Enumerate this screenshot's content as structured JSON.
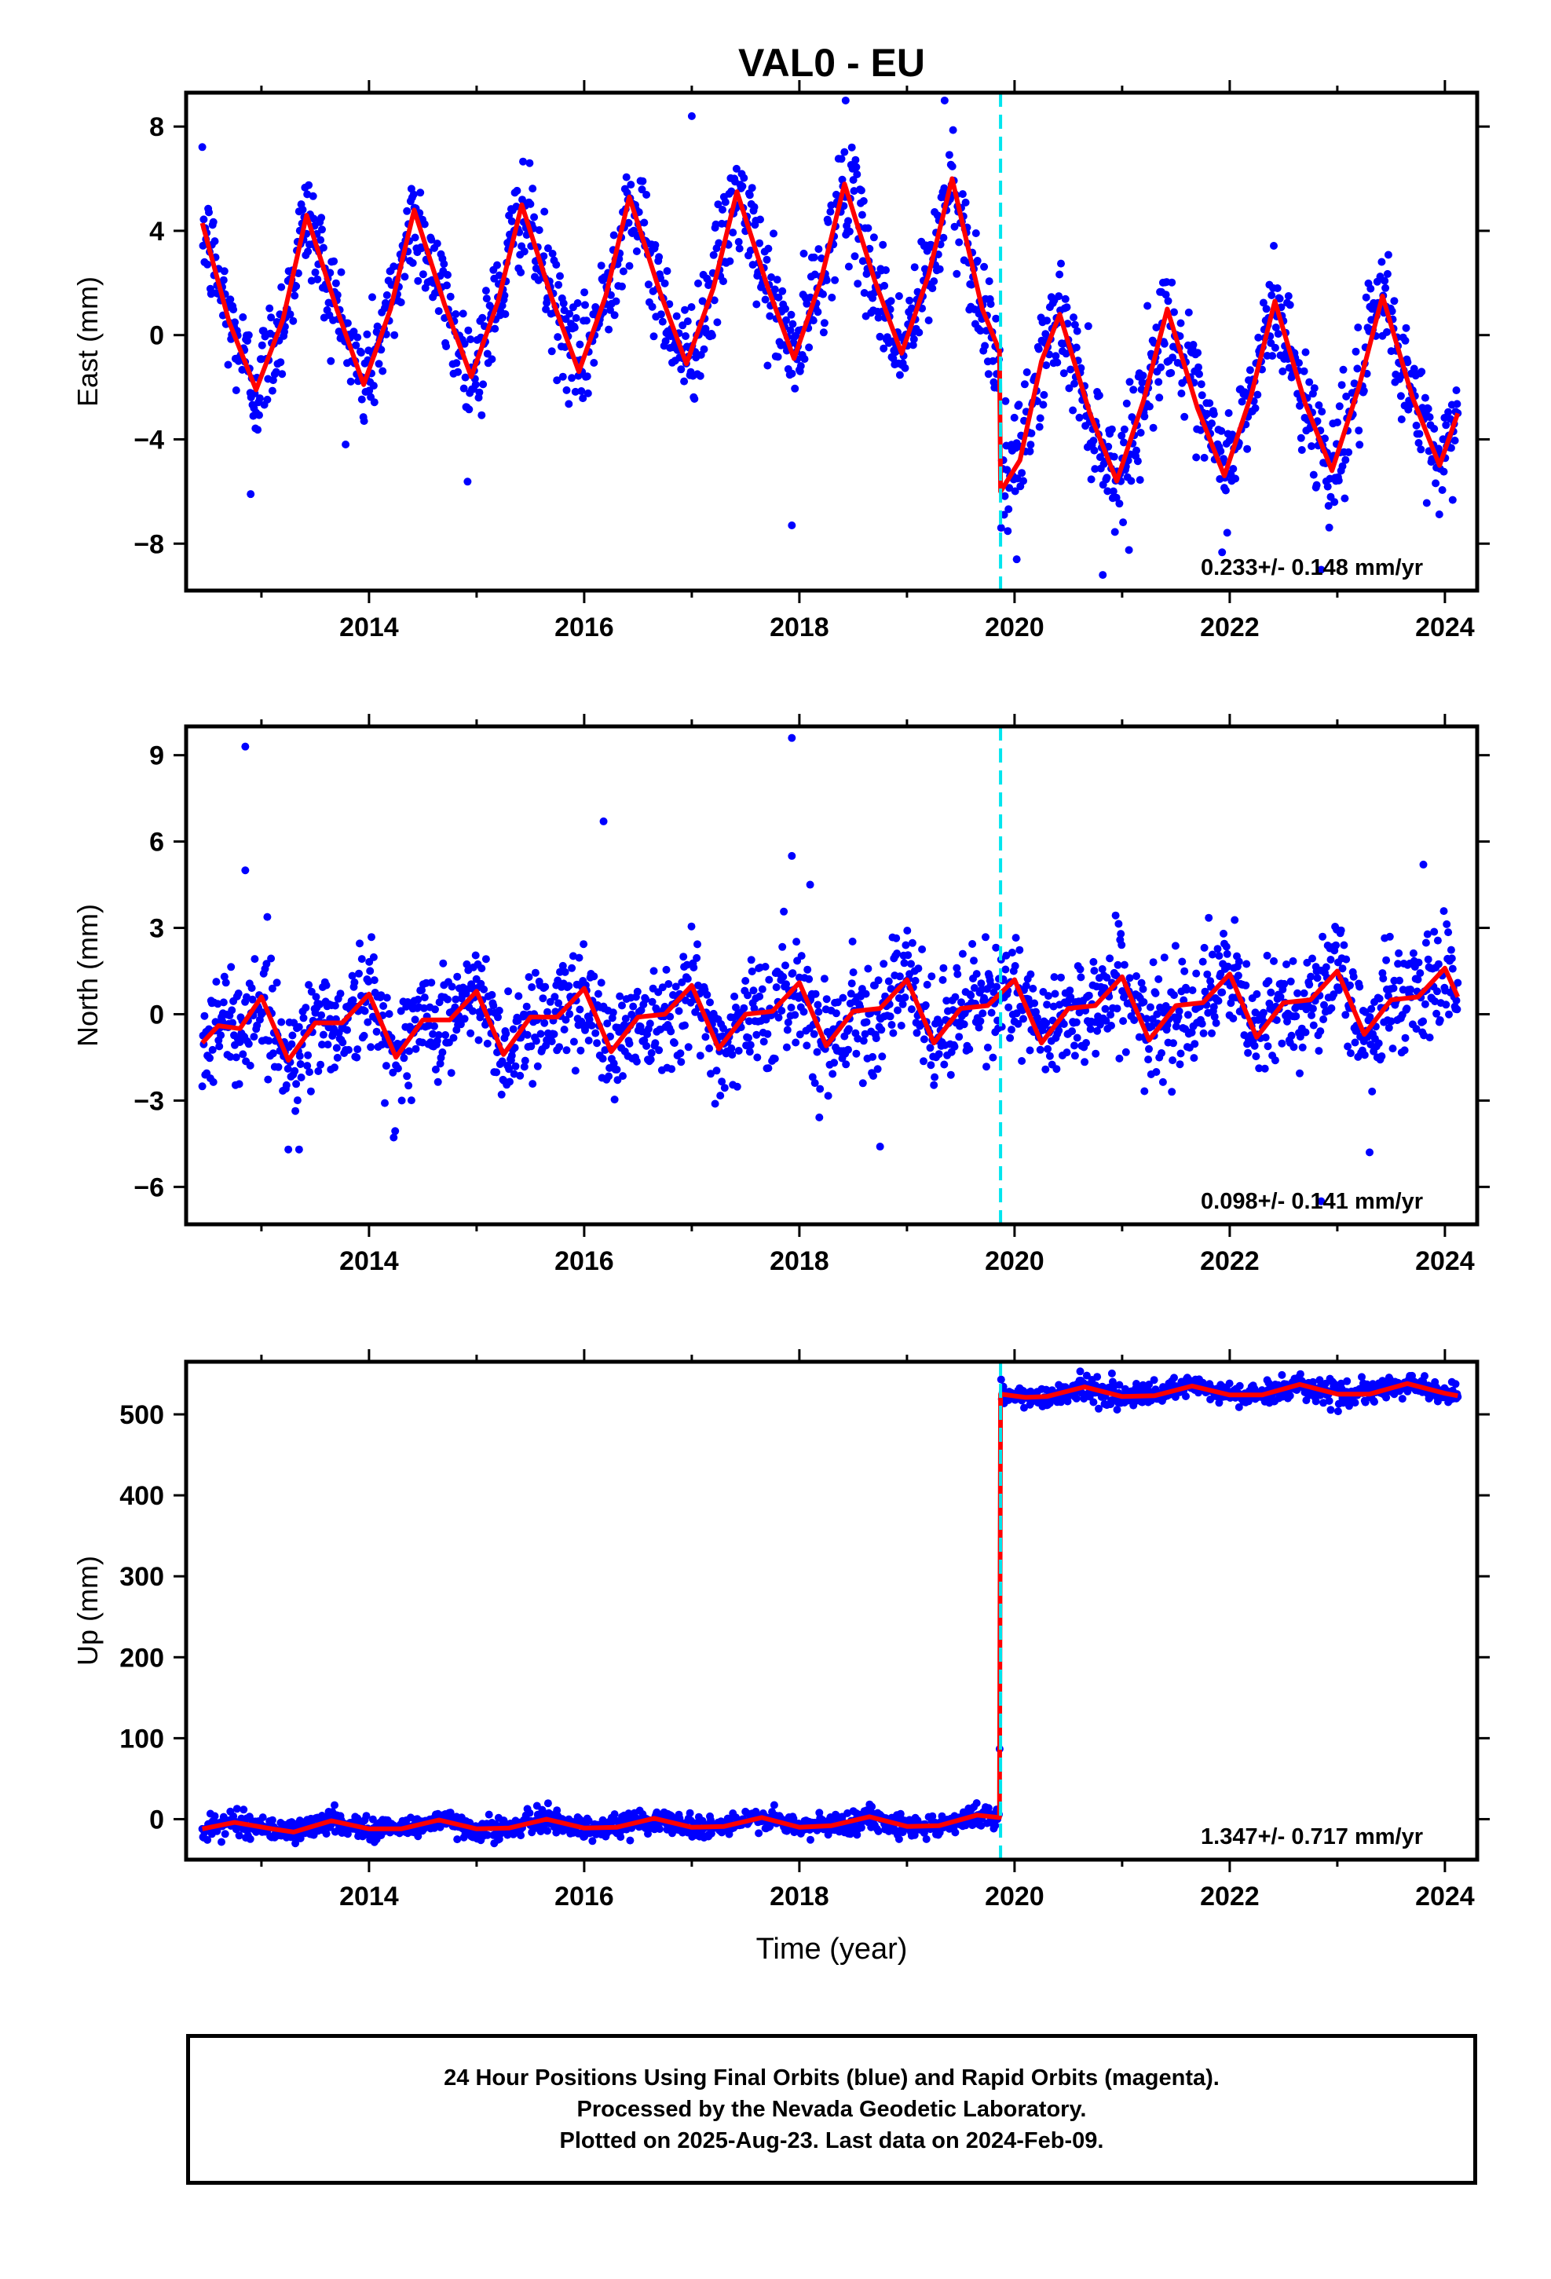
{
  "title": "VAL0 - EU",
  "colors": {
    "final_orbits": "#0000ff",
    "fit": "#ff0000",
    "break_line": "#00e5ee",
    "frame": "#000000"
  },
  "chart_data": [
    {
      "type": "scatter",
      "ylabel": "East (mm)",
      "xlim": [
        2012.3,
        2024.3
      ],
      "ylim": [
        -9.8,
        9.3
      ],
      "xticks": [
        "2014",
        "2016",
        "2018",
        "2020",
        "2022",
        "2024"
      ],
      "xtick_values": [
        2014,
        2016,
        2018,
        2020,
        2022,
        2024
      ],
      "yticks": [
        "8",
        "4",
        "0",
        "−4",
        "−8"
      ],
      "ytick_values": [
        8,
        4,
        0,
        -4,
        -8
      ],
      "velocity": "0.233+/- 0.148 mm/yr",
      "break_epoch": 2019.87,
      "fit": [
        {
          "x": 2012.45,
          "y": 4.3
        },
        {
          "x": 2012.7,
          "y": 0.5
        },
        {
          "x": 2012.95,
          "y": -2.1
        },
        {
          "x": 2013.2,
          "y": 0.6
        },
        {
          "x": 2013.42,
          "y": 4.6
        },
        {
          "x": 2013.7,
          "y": 1.0
        },
        {
          "x": 2013.95,
          "y": -1.9
        },
        {
          "x": 2014.2,
          "y": 1.0
        },
        {
          "x": 2014.42,
          "y": 4.8
        },
        {
          "x": 2014.7,
          "y": 1.2
        },
        {
          "x": 2014.95,
          "y": -1.6
        },
        {
          "x": 2015.2,
          "y": 1.3
        },
        {
          "x": 2015.42,
          "y": 5.0
        },
        {
          "x": 2015.7,
          "y": 1.4
        },
        {
          "x": 2015.95,
          "y": -1.4
        },
        {
          "x": 2016.2,
          "y": 1.5
        },
        {
          "x": 2016.42,
          "y": 5.3
        },
        {
          "x": 2016.7,
          "y": 1.7
        },
        {
          "x": 2016.95,
          "y": -1.1
        },
        {
          "x": 2017.2,
          "y": 1.8
        },
        {
          "x": 2017.42,
          "y": 5.5
        },
        {
          "x": 2017.7,
          "y": 1.9
        },
        {
          "x": 2017.95,
          "y": -0.9
        },
        {
          "x": 2018.2,
          "y": 2.1
        },
        {
          "x": 2018.42,
          "y": 5.8
        },
        {
          "x": 2018.7,
          "y": 2.1
        },
        {
          "x": 2018.95,
          "y": -0.7
        },
        {
          "x": 2019.2,
          "y": 2.3
        },
        {
          "x": 2019.42,
          "y": 6.0
        },
        {
          "x": 2019.7,
          "y": 1.0
        },
        {
          "x": 2019.86,
          "y": -0.6
        },
        {
          "x": 2019.87,
          "y": -6.0
        },
        {
          "x": 2020.05,
          "y": -4.8
        },
        {
          "x": 2020.25,
          "y": -1.0
        },
        {
          "x": 2020.42,
          "y": 0.8
        },
        {
          "x": 2020.7,
          "y": -3.0
        },
        {
          "x": 2020.95,
          "y": -5.6
        },
        {
          "x": 2021.2,
          "y": -2.5
        },
        {
          "x": 2021.42,
          "y": 1.0
        },
        {
          "x": 2021.7,
          "y": -2.8
        },
        {
          "x": 2021.95,
          "y": -5.4
        },
        {
          "x": 2022.2,
          "y": -2.3
        },
        {
          "x": 2022.42,
          "y": 1.3
        },
        {
          "x": 2022.7,
          "y": -2.6
        },
        {
          "x": 2022.95,
          "y": -5.2
        },
        {
          "x": 2023.2,
          "y": -2.0
        },
        {
          "x": 2023.42,
          "y": 1.5
        },
        {
          "x": 2023.7,
          "y": -2.4
        },
        {
          "x": 2023.95,
          "y": -5.0
        },
        {
          "x": 2024.12,
          "y": -3.0
        }
      ],
      "outliers": [
        {
          "x": 2012.9,
          "y": -6.1
        },
        {
          "x": 2017.0,
          "y": 8.4
        },
        {
          "x": 2017.93,
          "y": -7.3
        },
        {
          "x": 2018.43,
          "y": 9.0
        },
        {
          "x": 2019.35,
          "y": 9.0
        },
        {
          "x": 2020.02,
          "y": -8.6
        },
        {
          "x": 2020.82,
          "y": -9.2
        },
        {
          "x": 2022.85,
          "y": -9.0
        }
      ]
    },
    {
      "type": "scatter",
      "ylabel": "North (mm)",
      "xlim": [
        2012.3,
        2024.3
      ],
      "ylim": [
        -7.3,
        10.0
      ],
      "xticks": [
        "2014",
        "2016",
        "2018",
        "2020",
        "2022",
        "2024"
      ],
      "xtick_values": [
        2014,
        2016,
        2018,
        2020,
        2022,
        2024
      ],
      "yticks": [
        "9",
        "6",
        "3",
        "0",
        "−3",
        "−6"
      ],
      "ytick_values": [
        9,
        6,
        3,
        0,
        -3,
        -6
      ],
      "velocity": "0.098+/- 0.141 mm/yr",
      "break_epoch": 2019.87,
      "fit": [
        {
          "x": 2012.45,
          "y": -1.0
        },
        {
          "x": 2012.6,
          "y": -0.4
        },
        {
          "x": 2012.8,
          "y": -0.5
        },
        {
          "x": 2013.0,
          "y": 0.6
        },
        {
          "x": 2013.25,
          "y": -1.6
        },
        {
          "x": 2013.5,
          "y": -0.3
        },
        {
          "x": 2013.75,
          "y": -0.3
        },
        {
          "x": 2014.0,
          "y": 0.7
        },
        {
          "x": 2014.25,
          "y": -1.5
        },
        {
          "x": 2014.5,
          "y": -0.2
        },
        {
          "x": 2014.75,
          "y": -0.2
        },
        {
          "x": 2015.0,
          "y": 0.8
        },
        {
          "x": 2015.25,
          "y": -1.4
        },
        {
          "x": 2015.5,
          "y": -0.1
        },
        {
          "x": 2015.75,
          "y": -0.1
        },
        {
          "x": 2016.0,
          "y": 0.9
        },
        {
          "x": 2016.25,
          "y": -1.3
        },
        {
          "x": 2016.5,
          "y": -0.1
        },
        {
          "x": 2016.75,
          "y": 0.0
        },
        {
          "x": 2017.0,
          "y": 1.0
        },
        {
          "x": 2017.25,
          "y": -1.2
        },
        {
          "x": 2017.5,
          "y": 0.0
        },
        {
          "x": 2017.75,
          "y": 0.1
        },
        {
          "x": 2018.0,
          "y": 1.1
        },
        {
          "x": 2018.25,
          "y": -1.1
        },
        {
          "x": 2018.5,
          "y": 0.1
        },
        {
          "x": 2018.75,
          "y": 0.2
        },
        {
          "x": 2019.0,
          "y": 1.2
        },
        {
          "x": 2019.25,
          "y": -1.0
        },
        {
          "x": 2019.5,
          "y": 0.2
        },
        {
          "x": 2019.75,
          "y": 0.3
        },
        {
          "x": 2020.0,
          "y": 1.2
        },
        {
          "x": 2020.25,
          "y": -1.0
        },
        {
          "x": 2020.5,
          "y": 0.2
        },
        {
          "x": 2020.75,
          "y": 0.3
        },
        {
          "x": 2021.0,
          "y": 1.3
        },
        {
          "x": 2021.25,
          "y": -0.9
        },
        {
          "x": 2021.5,
          "y": 0.3
        },
        {
          "x": 2021.75,
          "y": 0.4
        },
        {
          "x": 2022.0,
          "y": 1.4
        },
        {
          "x": 2022.25,
          "y": -0.8
        },
        {
          "x": 2022.5,
          "y": 0.4
        },
        {
          "x": 2022.75,
          "y": 0.5
        },
        {
          "x": 2023.0,
          "y": 1.5
        },
        {
          "x": 2023.25,
          "y": -0.7
        },
        {
          "x": 2023.5,
          "y": 0.5
        },
        {
          "x": 2023.75,
          "y": 0.6
        },
        {
          "x": 2024.0,
          "y": 1.6
        },
        {
          "x": 2024.12,
          "y": 0.6
        }
      ],
      "outliers": [
        {
          "x": 2012.85,
          "y": 9.3
        },
        {
          "x": 2012.85,
          "y": 5.0
        },
        {
          "x": 2013.25,
          "y": -4.7
        },
        {
          "x": 2013.35,
          "y": -4.7
        },
        {
          "x": 2016.18,
          "y": 6.7
        },
        {
          "x": 2017.93,
          "y": 9.6
        },
        {
          "x": 2017.93,
          "y": 5.5
        },
        {
          "x": 2018.1,
          "y": 4.5
        },
        {
          "x": 2018.75,
          "y": -4.6
        },
        {
          "x": 2022.85,
          "y": -6.5
        },
        {
          "x": 2023.3,
          "y": -4.8
        },
        {
          "x": 2023.8,
          "y": 5.2
        }
      ]
    },
    {
      "type": "scatter",
      "ylabel": "Up (mm)",
      "xlabel": "Time (year)",
      "xlim": [
        2012.3,
        2024.3
      ],
      "ylim": [
        -50,
        565
      ],
      "xticks": [
        "2014",
        "2016",
        "2018",
        "2020",
        "2022",
        "2024"
      ],
      "xtick_values": [
        2014,
        2016,
        2018,
        2020,
        2022,
        2024
      ],
      "yticks": [
        "500",
        "400",
        "300",
        "200",
        "100",
        "0"
      ],
      "ytick_values": [
        500,
        400,
        300,
        200,
        100,
        0
      ],
      "velocity": "1.347+/- 0.717 mm/yr",
      "break_epoch": 2019.87,
      "fit": [
        {
          "x": 2012.45,
          "y": -12
        },
        {
          "x": 2012.75,
          "y": -4
        },
        {
          "x": 2013.1,
          "y": -12
        },
        {
          "x": 2013.3,
          "y": -16
        },
        {
          "x": 2013.65,
          "y": -2
        },
        {
          "x": 2014.0,
          "y": -12
        },
        {
          "x": 2014.3,
          "y": -12
        },
        {
          "x": 2014.65,
          "y": -1
        },
        {
          "x": 2015.0,
          "y": -12
        },
        {
          "x": 2015.3,
          "y": -11
        },
        {
          "x": 2015.65,
          "y": 0
        },
        {
          "x": 2016.0,
          "y": -11
        },
        {
          "x": 2016.3,
          "y": -10
        },
        {
          "x": 2016.65,
          "y": 1
        },
        {
          "x": 2017.0,
          "y": -10
        },
        {
          "x": 2017.3,
          "y": -9
        },
        {
          "x": 2017.65,
          "y": 2
        },
        {
          "x": 2018.0,
          "y": -10
        },
        {
          "x": 2018.3,
          "y": -8
        },
        {
          "x": 2018.65,
          "y": 3
        },
        {
          "x": 2019.0,
          "y": -9
        },
        {
          "x": 2019.3,
          "y": -8
        },
        {
          "x": 2019.65,
          "y": 5
        },
        {
          "x": 2019.86,
          "y": 2
        },
        {
          "x": 2019.87,
          "y": 525
        },
        {
          "x": 2020.1,
          "y": 521
        },
        {
          "x": 2020.3,
          "y": 522
        },
        {
          "x": 2020.65,
          "y": 534
        },
        {
          "x": 2021.0,
          "y": 522
        },
        {
          "x": 2021.3,
          "y": 523
        },
        {
          "x": 2021.65,
          "y": 535
        },
        {
          "x": 2022.0,
          "y": 524
        },
        {
          "x": 2022.3,
          "y": 524
        },
        {
          "x": 2022.65,
          "y": 537
        },
        {
          "x": 2023.0,
          "y": 525
        },
        {
          "x": 2023.3,
          "y": 525
        },
        {
          "x": 2023.65,
          "y": 538
        },
        {
          "x": 2024.0,
          "y": 526
        },
        {
          "x": 2024.12,
          "y": 523
        }
      ],
      "outliers": []
    }
  ],
  "footer": {
    "line1": "24 Hour Positions Using Final Orbits (blue) and Rapid Orbits (magenta).",
    "line2": "Processed by the Nevada Geodetic Laboratory.",
    "line3": "Plotted on 2025-Aug-23. Last data on 2024-Feb-09."
  }
}
